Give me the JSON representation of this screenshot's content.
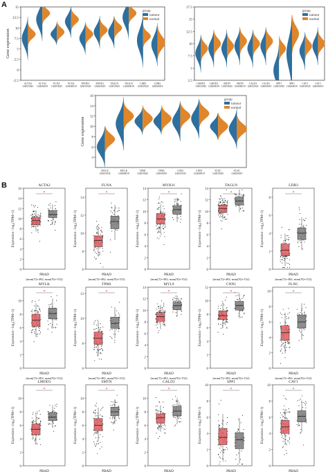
{
  "panels": {
    "a": "A",
    "b": "B"
  },
  "colors": {
    "tumour": "#2e6f9e",
    "normal": "#e0862a",
    "box_tumour": "#e25a5f",
    "box_normal": "#7a7a7a",
    "sig": "#e8343c"
  },
  "chart_data": [
    {
      "type": "violin",
      "panel": "A",
      "ylabel": "Gene expression",
      "ylim": [
        -2.5,
        15
      ],
      "yticks": [
        -2.5,
        0,
        2.5,
        5,
        7.5,
        10,
        12.5,
        15
      ],
      "legend": {
        "title": "group",
        "entries": [
          "tumour",
          "normal"
        ],
        "placement": "top-right"
      },
      "categories": [
        [
          "ACTA2",
          "GSE55945"
        ],
        [
          "ACTA2",
          "GSE69019"
        ],
        [
          "FLNA",
          "GSE55945"
        ],
        [
          "FLNA",
          "GSE69019"
        ],
        [
          "MYH11",
          "GSE55945"
        ],
        [
          "MYH11",
          "GSE69019"
        ],
        [
          "TAGLN",
          "GSE55945"
        ],
        [
          "TAGLN",
          "GSE69019"
        ],
        [
          "LDB3",
          "GSE55945"
        ],
        [
          "LDB3",
          "GSE69019"
        ]
      ],
      "series": [
        {
          "name": "tumour",
          "center": [
            7.5,
            12.0,
            8.5,
            11.5,
            7.5,
            9.0,
            9.0,
            12.5,
            7.0,
            6.0
          ],
          "spread": [
            2.0,
            2.0,
            1.0,
            1.5,
            1.5,
            1.5,
            1.5,
            2.0,
            2.5,
            2.0
          ]
        },
        {
          "name": "normal",
          "center": [
            8.5,
            13.5,
            9.0,
            12.0,
            8.5,
            9.5,
            10.0,
            13.5,
            8.0,
            6.5
          ],
          "spread": [
            1.0,
            1.0,
            1.0,
            1.0,
            1.0,
            1.0,
            1.0,
            1.0,
            1.0,
            1.5
          ]
        }
      ]
    },
    {
      "type": "violin",
      "panel": "A",
      "ylabel": "",
      "ylim": [
        2.5,
        17.5
      ],
      "yticks": [
        2.5,
        5.0,
        7.5,
        10.0,
        12.5,
        15.0,
        17.5
      ],
      "legend": {
        "title": "group",
        "entries": [
          "tumour",
          "normal"
        ],
        "placement": "top-right"
      },
      "categories": [
        [
          "LMOD1",
          "GSE55945"
        ],
        [
          "LMOD1",
          "GSE69019"
        ],
        [
          "SMTN",
          "GSE55945"
        ],
        [
          "SMTN",
          "GSE69019"
        ],
        [
          "CALD1",
          "GSE55945"
        ],
        [
          "CALD1",
          "GSE69019"
        ],
        [
          "SPP1",
          "GSE55945"
        ],
        [
          "SPP1",
          "GSE69019"
        ],
        [
          "CAV1",
          "GSE55945"
        ],
        [
          "CAV1",
          "GSE69019"
        ]
      ],
      "series": [
        {
          "name": "tumour",
          "center": [
            8.0,
            9.0,
            9.0,
            9.5,
            9.0,
            9.5,
            4.5,
            8.0,
            8.5,
            9.5
          ],
          "spread": [
            1.5,
            1.5,
            1.5,
            1.5,
            1.5,
            1.5,
            2.0,
            3.0,
            1.5,
            1.5
          ]
        },
        {
          "name": "normal",
          "center": [
            9.0,
            10.0,
            9.5,
            10.5,
            10.0,
            10.5,
            9.0,
            12.0,
            9.5,
            10.0
          ],
          "spread": [
            1.0,
            1.0,
            1.0,
            1.0,
            1.0,
            1.0,
            1.0,
            1.5,
            1.0,
            1.0
          ]
        }
      ]
    },
    {
      "type": "violin",
      "panel": "A",
      "ylabel": "Gene expression",
      "ylim": [
        2,
        16
      ],
      "yticks": [
        4,
        6,
        8,
        10,
        12,
        14,
        16
      ],
      "legend": {
        "title": "group",
        "entries": [
          "tumour",
          "normal"
        ],
        "placement": "top-right"
      },
      "categories": [
        [
          "MYLK",
          "GSE55945"
        ],
        [
          "MYLK",
          "GSE69019"
        ],
        [
          "TPM1",
          "GSE55945"
        ],
        [
          "TPM1",
          "GSE69019"
        ],
        [
          "CNN1",
          "GSE55945"
        ],
        [
          "CNN1",
          "GSE69019"
        ],
        [
          "FLNC",
          "GSE55945"
        ],
        [
          "FLNC",
          "GSE69019"
        ]
      ],
      "series": [
        {
          "name": "tumour",
          "center": [
            6.0,
            10.5,
            11.0,
            11.0,
            11.0,
            11.5,
            10.0,
            9.5
          ],
          "spread": [
            1.5,
            2.0,
            1.0,
            1.0,
            1.5,
            1.5,
            1.0,
            1.5
          ]
        },
        {
          "name": "normal",
          "center": [
            7.5,
            12.0,
            11.5,
            11.5,
            12.0,
            12.5,
            10.0,
            9.5
          ],
          "spread": [
            1.0,
            1.0,
            1.0,
            1.0,
            1.0,
            1.0,
            1.0,
            1.0
          ]
        }
      ]
    },
    {
      "type": "box",
      "panel": "B",
      "ylabel": "Expression - log₂(TPM+1)",
      "xlabel": "PRAD",
      "note": "(num(T)=492; num(N)=152)",
      "groups": [
        "tumour",
        "normal"
      ],
      "plots": [
        {
          "title": "ACTA2",
          "ylim": [
            0,
            16
          ],
          "yticks": [
            0,
            2,
            4,
            6,
            8,
            10,
            12,
            14,
            16
          ],
          "tumour": [
            8.8,
            9.6,
            10.3
          ],
          "normal": [
            10.2,
            10.8,
            11.6
          ]
        },
        {
          "title": "FLNA",
          "ylim": [
            6,
            15
          ],
          "yticks": [
            6,
            8,
            10,
            12,
            14
          ],
          "tumour": [
            8.5,
            9.2,
            9.7
          ],
          "normal": [
            10.5,
            11.3,
            11.9
          ]
        },
        {
          "title": "MYH11",
          "ylim": [
            0,
            14
          ],
          "yticks": [
            0,
            2,
            4,
            6,
            8,
            10,
            12,
            14
          ],
          "tumour": [
            7.8,
            8.7,
            9.6
          ],
          "normal": [
            9.5,
            10.3,
            11.0
          ]
        },
        {
          "title": "TAGLN",
          "ylim": [
            0,
            14
          ],
          "yticks": [
            0,
            2,
            4,
            6,
            8,
            10,
            12,
            14
          ],
          "tumour": [
            9.8,
            10.5,
            11.1
          ],
          "normal": [
            11.1,
            11.8,
            12.5
          ]
        },
        {
          "title": "LDB3",
          "ylim": [
            0,
            9
          ],
          "yticks": [
            0,
            2,
            4,
            6,
            8
          ],
          "tumour": [
            1.5,
            2.1,
            2.8
          ],
          "normal": [
            3.3,
            4.0,
            4.6
          ]
        },
        {
          "title": "MYLK",
          "ylim": [
            0,
            12
          ],
          "yticks": [
            0,
            2,
            4,
            6,
            8,
            10
          ],
          "tumour": [
            6.2,
            7.1,
            8.0
          ],
          "normal": [
            7.3,
            8.1,
            8.9
          ]
        },
        {
          "title": "TPM1",
          "ylim": [
            6,
            12.5
          ],
          "yticks": [
            6,
            8,
            10,
            12
          ],
          "tumour": [
            7.9,
            8.4,
            8.9
          ],
          "normal": [
            9.2,
            9.6,
            10.1
          ]
        },
        {
          "title": "MYL9",
          "ylim": [
            0,
            14
          ],
          "yticks": [
            0,
            2,
            4,
            6,
            8,
            10,
            12,
            14
          ],
          "tumour": [
            8.1,
            8.9,
            9.6
          ],
          "normal": [
            10.1,
            10.8,
            11.4
          ]
        },
        {
          "title": "CNN1",
          "ylim": [
            0,
            12
          ],
          "yticks": [
            0,
            2,
            4,
            6,
            8,
            10,
            12
          ],
          "tumour": [
            7.2,
            7.8,
            8.5
          ],
          "normal": [
            8.6,
            9.3,
            9.9
          ]
        },
        {
          "title": "FLNC",
          "ylim": [
            0,
            10.5
          ],
          "yticks": [
            0,
            2,
            4,
            6,
            8,
            10
          ],
          "tumour": [
            3.6,
            4.6,
            5.5
          ],
          "normal": [
            5.2,
            6.0,
            6.9
          ]
        },
        {
          "title": "LMOD1",
          "ylim": [
            0,
            12
          ],
          "yticks": [
            0,
            2,
            4,
            6,
            8,
            10
          ],
          "tumour": [
            4.6,
            5.4,
            6.2
          ],
          "normal": [
            6.7,
            7.2,
            7.9
          ]
        },
        {
          "title": "SMTN",
          "ylim": [
            0,
            12
          ],
          "yticks": [
            0,
            2,
            4,
            6,
            8,
            10
          ],
          "tumour": [
            5.2,
            6.0,
            7.0
          ],
          "normal": [
            7.4,
            8.0,
            8.7
          ]
        },
        {
          "title": "CALD1",
          "ylim": [
            0,
            12
          ],
          "yticks": [
            0,
            2,
            4,
            6,
            8,
            10
          ],
          "tumour": [
            6.3,
            7.1,
            7.7
          ],
          "normal": [
            7.4,
            8.1,
            8.8
          ]
        },
        {
          "title": "SPP1",
          "ylim": [
            0,
            10
          ],
          "yticks": [
            0,
            2,
            4,
            6,
            8,
            10
          ],
          "tumour": [
            2.6,
            3.5,
            4.6
          ],
          "normal": [
            2.1,
            3.2,
            4.1
          ]
        },
        {
          "title": "CAV1",
          "ylim": [
            0,
            10
          ],
          "yticks": [
            0,
            2,
            4,
            6,
            8,
            10
          ],
          "tumour": [
            4.0,
            4.8,
            5.6
          ],
          "normal": [
            5.4,
            6.1,
            6.8
          ]
        }
      ]
    }
  ]
}
